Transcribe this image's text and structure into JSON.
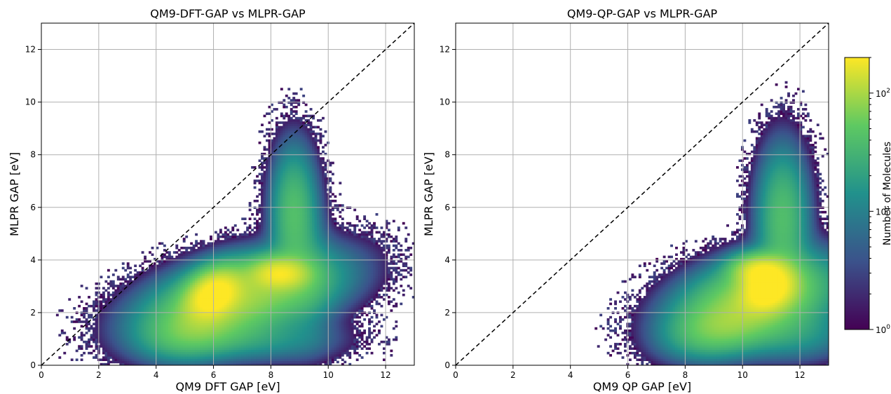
{
  "chart_data": [
    {
      "type": "heatmap",
      "title": "QM9-DFT-GAP vs MLPR-GAP",
      "xlabel": "QM9 DFT GAP [eV]",
      "ylabel": "MLPR GAP [eV]",
      "xlim": [
        0,
        13
      ],
      "ylim": [
        0,
        13
      ],
      "x_ticks": [
        0,
        2,
        4,
        6,
        8,
        10,
        12
      ],
      "y_ticks": [
        0,
        2,
        4,
        6,
        8,
        10,
        12
      ],
      "grid": true,
      "reference_line": {
        "style": "dashed",
        "slope": 1,
        "intercept": 0
      },
      "density_peaks": [
        {
          "x": 6.0,
          "y": 2.8
        },
        {
          "x": 8.3,
          "y": 3.5
        }
      ],
      "distribution_summary": "dense cluster x 4-10, y 0.5-4; arm rising along x 8.5-9.5 to y 7.5; sparse outliers up to x 12.6, y 9.4"
    },
    {
      "type": "heatmap",
      "title": "QM9-QP-GAP vs MLPR-GAP",
      "xlabel": "QM9 QP GAP [eV]",
      "ylabel": "MLPR GAP [eV]",
      "xlim": [
        0,
        13
      ],
      "ylim": [
        0,
        13
      ],
      "x_ticks": [
        0,
        2,
        4,
        6,
        8,
        10,
        12
      ],
      "y_ticks": [
        0,
        2,
        4,
        6,
        8,
        10,
        12
      ],
      "grid": true,
      "reference_line": {
        "style": "dashed",
        "slope": 1,
        "intercept": 0
      },
      "density_peaks": [
        {
          "x": 10.9,
          "y": 2.9
        },
        {
          "x": 10.6,
          "y": 3.6
        }
      ],
      "distribution_summary": "dense cluster x 8-13, y 0.5-4.5; arm rising at x 11-12 to y 7.5; sparse outliers down to x 4.5, up to y 9.4"
    }
  ],
  "colorbar": {
    "label": "Number of Molecules",
    "scale": "log",
    "range": [
      1,
      200
    ],
    "tick_values": [
      1,
      10,
      100
    ],
    "tick_labels": [
      {
        "base": "10",
        "exp": "0"
      },
      {
        "base": "10",
        "exp": "1"
      },
      {
        "base": "10",
        "exp": "2"
      }
    ],
    "colormap": "viridis",
    "colors": [
      "#440154",
      "#3b528b",
      "#21918c",
      "#5ec962",
      "#fde725"
    ]
  }
}
